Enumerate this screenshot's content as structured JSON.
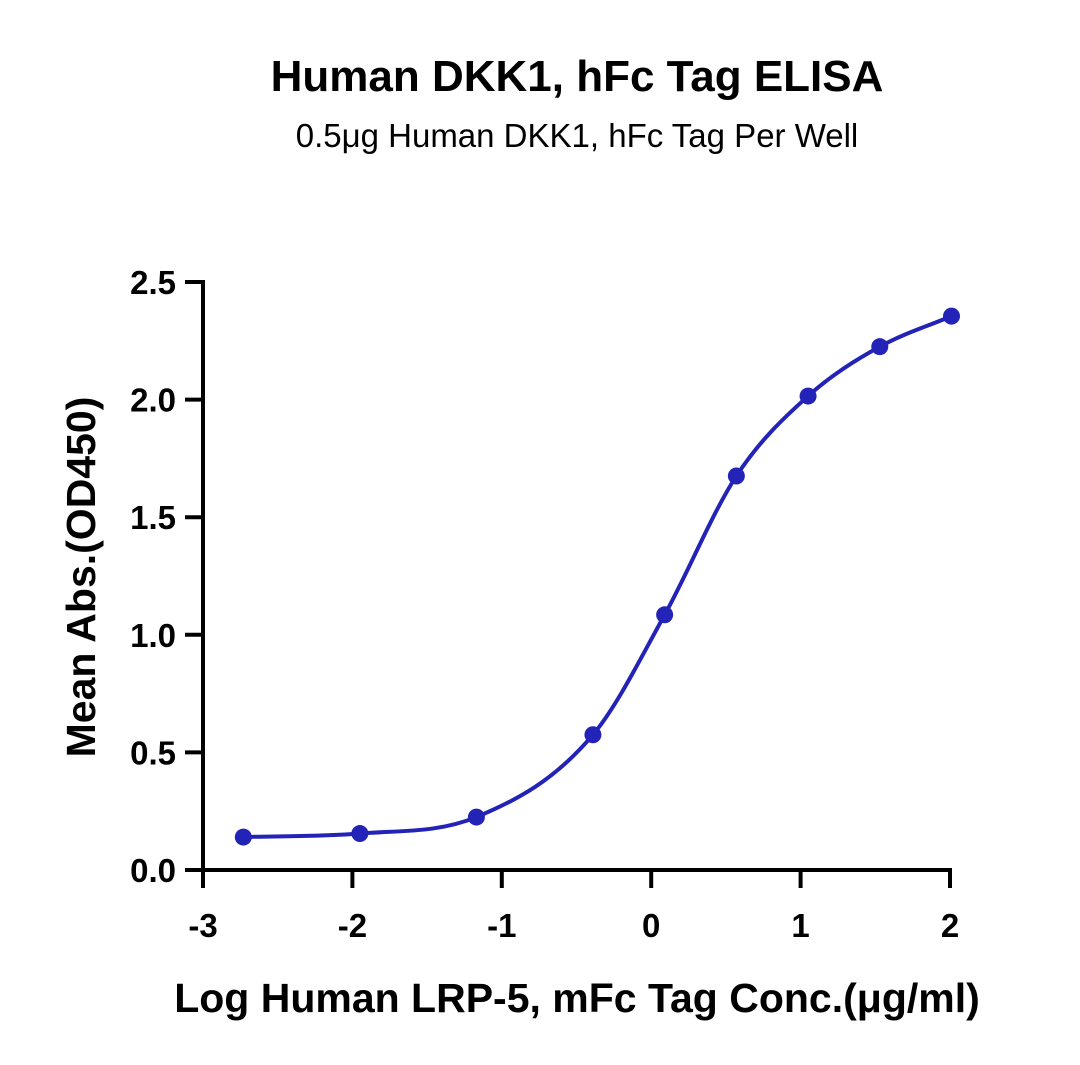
{
  "chart_data": {
    "type": "scatter",
    "title": "Human DKK1, hFc Tag ELISA",
    "subtitle": "0.5μg Human DKK1, hFc Tag Per Well",
    "xlabel": "Log Human LRP-5, mFc Tag Conc.(μg/ml)",
    "ylabel": "Mean Abs.(OD450)",
    "xlim": [
      -3,
      2
    ],
    "ylim": [
      0,
      2.5
    ],
    "x_ticks": [
      "-3",
      "-2",
      "-1",
      "0",
      "1",
      "2"
    ],
    "y_ticks": [
      "0.0",
      "0.5",
      "1.0",
      "1.5",
      "2.0",
      "2.5"
    ],
    "grid": false,
    "fit_curve": true,
    "colors": {
      "series": "#2323b8",
      "axis": "#000000"
    },
    "series": [
      {
        "x": [
          -2.73,
          -1.95,
          -1.17,
          -0.39,
          0.09,
          0.57,
          1.05,
          1.53,
          2.01
        ],
        "y": [
          0.14,
          0.155,
          0.225,
          0.575,
          1.085,
          1.675,
          2.015,
          2.225,
          2.355
        ]
      }
    ]
  }
}
